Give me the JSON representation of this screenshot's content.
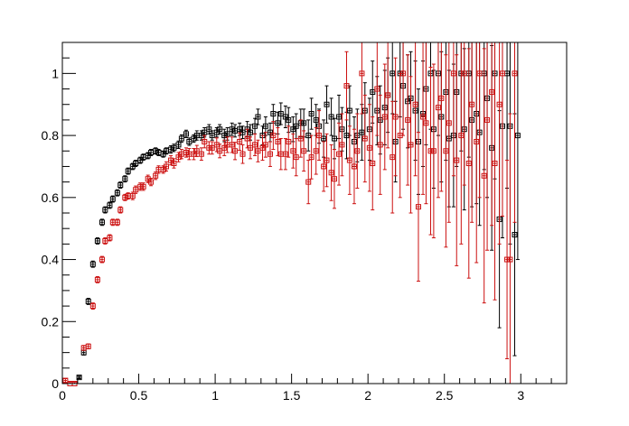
{
  "chart_data": {
    "type": "scatter",
    "title": "",
    "xlabel": "",
    "ylabel": "",
    "xlim": [
      0,
      3.3
    ],
    "ylim": [
      0,
      1.1
    ],
    "grid": false,
    "error_bars": true,
    "x_ticks": [
      {
        "value": 0,
        "label": "0"
      },
      {
        "value": 0.5,
        "label": "0.5"
      },
      {
        "value": 1,
        "label": "1"
      },
      {
        "value": 1.5,
        "label": "1.5"
      },
      {
        "value": 2,
        "label": "2"
      },
      {
        "value": 2.5,
        "label": "2.5"
      },
      {
        "value": 3,
        "label": "3"
      }
    ],
    "y_ticks": [
      {
        "value": 0,
        "label": "0"
      },
      {
        "value": 0.2,
        "label": "0.2"
      },
      {
        "value": 0.4,
        "label": "0.4"
      },
      {
        "value": 0.6,
        "label": "0.6"
      },
      {
        "value": 0.8,
        "label": "0.8"
      },
      {
        "value": 1,
        "label": "1"
      }
    ],
    "series": [
      {
        "color": "#000000",
        "x_halfwidth": 0.01,
        "points": [
          [
            0.11,
            0.02,
            0.004
          ],
          [
            0.14,
            0.1,
            0.008
          ],
          [
            0.17,
            0.265,
            0.01
          ],
          [
            0.2,
            0.385,
            0.01
          ],
          [
            0.23,
            0.46,
            0.01
          ],
          [
            0.26,
            0.52,
            0.01
          ],
          [
            0.28,
            0.56,
            0.01
          ],
          [
            0.31,
            0.575,
            0.01
          ],
          [
            0.33,
            0.595,
            0.01
          ],
          [
            0.36,
            0.615,
            0.01
          ],
          [
            0.38,
            0.64,
            0.01
          ],
          [
            0.41,
            0.66,
            0.01
          ],
          [
            0.43,
            0.685,
            0.01
          ],
          [
            0.46,
            0.7,
            0.01
          ],
          [
            0.48,
            0.71,
            0.01
          ],
          [
            0.51,
            0.72,
            0.01
          ],
          [
            0.53,
            0.73,
            0.01
          ],
          [
            0.56,
            0.735,
            0.01
          ],
          [
            0.58,
            0.745,
            0.01
          ],
          [
            0.61,
            0.75,
            0.01
          ],
          [
            0.63,
            0.745,
            0.01
          ],
          [
            0.66,
            0.74,
            0.01
          ],
          [
            0.68,
            0.75,
            0.01
          ],
          [
            0.71,
            0.755,
            0.012
          ],
          [
            0.73,
            0.76,
            0.012
          ],
          [
            0.76,
            0.77,
            0.012
          ],
          [
            0.78,
            0.79,
            0.012
          ],
          [
            0.81,
            0.805,
            0.012
          ],
          [
            0.83,
            0.78,
            0.012
          ],
          [
            0.86,
            0.79,
            0.012
          ],
          [
            0.88,
            0.8,
            0.015
          ],
          [
            0.91,
            0.8,
            0.015
          ],
          [
            0.93,
            0.81,
            0.015
          ],
          [
            0.96,
            0.82,
            0.015
          ],
          [
            0.98,
            0.8,
            0.015
          ],
          [
            1.01,
            0.81,
            0.015
          ],
          [
            1.03,
            0.82,
            0.015
          ],
          [
            1.06,
            0.8,
            0.02
          ],
          [
            1.08,
            0.805,
            0.02
          ],
          [
            1.11,
            0.82,
            0.02
          ],
          [
            1.13,
            0.815,
            0.02
          ],
          [
            1.16,
            0.82,
            0.02
          ],
          [
            1.18,
            0.81,
            0.02
          ],
          [
            1.21,
            0.82,
            0.025
          ],
          [
            1.23,
            0.81,
            0.025
          ],
          [
            1.26,
            0.83,
            0.025
          ],
          [
            1.28,
            0.86,
            0.025
          ],
          [
            1.31,
            0.8,
            0.03
          ],
          [
            1.33,
            0.83,
            0.03
          ],
          [
            1.36,
            0.81,
            0.03
          ],
          [
            1.38,
            0.87,
            0.03
          ],
          [
            1.41,
            0.84,
            0.035
          ],
          [
            1.43,
            0.87,
            0.035
          ],
          [
            1.46,
            0.86,
            0.035
          ],
          [
            1.48,
            0.85,
            0.04
          ],
          [
            1.51,
            0.82,
            0.04
          ],
          [
            1.53,
            0.83,
            0.04
          ],
          [
            1.56,
            0.84,
            0.045
          ],
          [
            1.58,
            0.84,
            0.045
          ],
          [
            1.61,
            0.8,
            0.05
          ],
          [
            1.63,
            0.87,
            0.05
          ],
          [
            1.66,
            0.85,
            0.05
          ],
          [
            1.68,
            0.83,
            0.055
          ],
          [
            1.71,
            0.79,
            0.06
          ],
          [
            1.73,
            0.9,
            0.06
          ],
          [
            1.76,
            0.86,
            0.06
          ],
          [
            1.78,
            0.79,
            0.065
          ],
          [
            1.81,
            0.86,
            0.07
          ],
          [
            1.83,
            0.82,
            0.07
          ],
          [
            1.86,
            0.8,
            0.075
          ],
          [
            1.88,
            0.88,
            0.08
          ],
          [
            1.91,
            0.78,
            0.08
          ],
          [
            1.93,
            0.8,
            0.085
          ],
          [
            1.96,
            0.81,
            0.09
          ],
          [
            1.98,
            0.88,
            0.09
          ],
          [
            2.01,
            0.82,
            0.1
          ],
          [
            2.03,
            0.94,
            0.1
          ],
          [
            2.06,
            0.88,
            0.11
          ],
          [
            2.08,
            0.85,
            0.11
          ],
          [
            2.11,
            0.89,
            0.12
          ],
          [
            2.13,
            0.93,
            0.12
          ],
          [
            2.16,
            1.0,
            0.13
          ],
          [
            2.18,
            0.78,
            0.13
          ],
          [
            2.21,
            1.0,
            0.14
          ],
          [
            2.23,
            0.96,
            0.14
          ],
          [
            2.26,
            0.91,
            0.15
          ],
          [
            2.28,
            0.92,
            0.15
          ],
          [
            2.31,
            0.88,
            0.16
          ],
          [
            2.33,
            0.78,
            0.17
          ],
          [
            2.36,
            0.87,
            0.17
          ],
          [
            2.38,
            0.95,
            0.18
          ],
          [
            2.41,
            1.0,
            0.18
          ],
          [
            2.43,
            0.82,
            0.19
          ],
          [
            2.46,
            1.0,
            0.2
          ],
          [
            2.48,
            0.86,
            0.21
          ],
          [
            2.51,
            0.94,
            0.22
          ],
          [
            2.53,
            0.79,
            0.22
          ],
          [
            2.56,
            0.8,
            0.23
          ],
          [
            2.58,
            0.94,
            0.24
          ],
          [
            2.61,
            1.0,
            0.25
          ],
          [
            2.63,
            0.82,
            0.26
          ],
          [
            2.66,
            1.0,
            0.27
          ],
          [
            2.68,
            0.85,
            0.28
          ],
          [
            2.71,
            0.87,
            0.29
          ],
          [
            2.73,
            0.81,
            0.3
          ],
          [
            2.76,
            1.0,
            0.31
          ],
          [
            2.78,
            0.92,
            0.32
          ],
          [
            2.81,
            0.76,
            0.33
          ],
          [
            2.83,
            1.0,
            0.34
          ],
          [
            2.86,
            0.53,
            0.35
          ],
          [
            2.88,
            0.83,
            0.36
          ],
          [
            2.91,
            1.0,
            0.37
          ],
          [
            2.93,
            0.83,
            0.38
          ],
          [
            2.96,
            0.48,
            0.39
          ],
          [
            2.98,
            0.8,
            0.4
          ]
        ]
      },
      {
        "color": "#cc1111",
        "x_halfwidth": 0.01,
        "points": [
          [
            0.02,
            0.01,
            0.006
          ],
          [
            0.05,
            0.0,
            0.004
          ],
          [
            0.08,
            0.0,
            0.004
          ],
          [
            0.14,
            0.115,
            0.008
          ],
          [
            0.17,
            0.12,
            0.008
          ],
          [
            0.2,
            0.25,
            0.01
          ],
          [
            0.23,
            0.335,
            0.01
          ],
          [
            0.26,
            0.4,
            0.01
          ],
          [
            0.28,
            0.46,
            0.01
          ],
          [
            0.31,
            0.47,
            0.01
          ],
          [
            0.33,
            0.52,
            0.01
          ],
          [
            0.36,
            0.52,
            0.01
          ],
          [
            0.38,
            0.56,
            0.01
          ],
          [
            0.41,
            0.6,
            0.01
          ],
          [
            0.43,
            0.605,
            0.01
          ],
          [
            0.46,
            0.605,
            0.012
          ],
          [
            0.48,
            0.625,
            0.012
          ],
          [
            0.51,
            0.635,
            0.012
          ],
          [
            0.53,
            0.635,
            0.012
          ],
          [
            0.56,
            0.66,
            0.012
          ],
          [
            0.58,
            0.65,
            0.012
          ],
          [
            0.61,
            0.67,
            0.012
          ],
          [
            0.63,
            0.69,
            0.012
          ],
          [
            0.66,
            0.69,
            0.012
          ],
          [
            0.68,
            0.7,
            0.015
          ],
          [
            0.71,
            0.72,
            0.015
          ],
          [
            0.73,
            0.71,
            0.015
          ],
          [
            0.76,
            0.73,
            0.015
          ],
          [
            0.78,
            0.74,
            0.015
          ],
          [
            0.81,
            0.745,
            0.015
          ],
          [
            0.83,
            0.74,
            0.018
          ],
          [
            0.86,
            0.74,
            0.018
          ],
          [
            0.88,
            0.75,
            0.018
          ],
          [
            0.91,
            0.74,
            0.02
          ],
          [
            0.93,
            0.78,
            0.02
          ],
          [
            0.96,
            0.76,
            0.02
          ],
          [
            0.98,
            0.76,
            0.02
          ],
          [
            1.01,
            0.77,
            0.022
          ],
          [
            1.03,
            0.75,
            0.022
          ],
          [
            1.06,
            0.76,
            0.025
          ],
          [
            1.08,
            0.77,
            0.025
          ],
          [
            1.11,
            0.77,
            0.025
          ],
          [
            1.13,
            0.75,
            0.028
          ],
          [
            1.16,
            0.78,
            0.028
          ],
          [
            1.18,
            0.74,
            0.03
          ],
          [
            1.21,
            0.79,
            0.03
          ],
          [
            1.23,
            0.76,
            0.035
          ],
          [
            1.26,
            0.77,
            0.035
          ],
          [
            1.28,
            0.75,
            0.035
          ],
          [
            1.31,
            0.76,
            0.04
          ],
          [
            1.33,
            0.77,
            0.04
          ],
          [
            1.36,
            0.74,
            0.04
          ],
          [
            1.38,
            0.8,
            0.045
          ],
          [
            1.41,
            0.78,
            0.045
          ],
          [
            1.43,
            0.74,
            0.05
          ],
          [
            1.46,
            0.74,
            0.05
          ],
          [
            1.48,
            0.78,
            0.05
          ],
          [
            1.51,
            0.75,
            0.055
          ],
          [
            1.53,
            0.73,
            0.06
          ],
          [
            1.56,
            0.79,
            0.06
          ],
          [
            1.58,
            0.75,
            0.065
          ],
          [
            1.61,
            0.65,
            0.07
          ],
          [
            1.63,
            0.73,
            0.07
          ],
          [
            1.66,
            0.75,
            0.075
          ],
          [
            1.68,
            0.8,
            0.08
          ],
          [
            1.71,
            0.7,
            0.08
          ],
          [
            1.73,
            0.72,
            0.085
          ],
          [
            1.76,
            0.68,
            0.09
          ],
          [
            1.78,
            0.66,
            0.095
          ],
          [
            1.81,
            0.74,
            0.1
          ],
          [
            1.83,
            0.77,
            0.1
          ],
          [
            1.86,
            0.96,
            0.11
          ],
          [
            1.88,
            0.72,
            0.11
          ],
          [
            1.91,
            0.7,
            0.12
          ],
          [
            1.93,
            0.75,
            0.12
          ],
          [
            1.96,
            1.0,
            0.13
          ],
          [
            1.98,
            0.79,
            0.14
          ],
          [
            2.01,
            0.76,
            0.14
          ],
          [
            2.03,
            0.71,
            0.15
          ],
          [
            2.06,
            0.95,
            0.15
          ],
          [
            2.08,
            0.77,
            0.16
          ],
          [
            2.11,
            0.86,
            0.17
          ],
          [
            2.13,
            0.93,
            0.17
          ],
          [
            2.16,
            0.73,
            0.18
          ],
          [
            2.18,
            0.86,
            0.19
          ],
          [
            2.21,
            0.8,
            0.2
          ],
          [
            2.23,
            1.0,
            0.2
          ],
          [
            2.26,
            0.85,
            0.21
          ],
          [
            2.28,
            0.77,
            0.22
          ],
          [
            2.31,
            0.9,
            0.23
          ],
          [
            2.33,
            0.57,
            0.24
          ],
          [
            2.36,
            0.86,
            0.25
          ],
          [
            2.38,
            0.84,
            0.26
          ],
          [
            2.41,
            0.75,
            0.27
          ],
          [
            2.43,
            0.75,
            0.28
          ],
          [
            2.46,
            0.89,
            0.29
          ],
          [
            2.48,
            0.92,
            0.3
          ],
          [
            2.51,
            0.75,
            0.31
          ],
          [
            2.53,
            0.84,
            0.32
          ],
          [
            2.56,
            1.0,
            0.33
          ],
          [
            2.58,
            0.72,
            0.34
          ],
          [
            2.61,
            0.8,
            0.35
          ],
          [
            2.63,
            1.0,
            0.36
          ],
          [
            2.66,
            0.71,
            0.37
          ],
          [
            2.68,
            0.9,
            0.38
          ],
          [
            2.71,
            0.78,
            0.39
          ],
          [
            2.73,
            1.0,
            0.4
          ],
          [
            2.76,
            0.67,
            0.41
          ],
          [
            2.78,
            0.85,
            0.42
          ],
          [
            2.81,
            0.94,
            0.43
          ],
          [
            2.83,
            0.71,
            0.44
          ],
          [
            2.86,
            0.9,
            0.45
          ],
          [
            2.88,
            1.0,
            0.46
          ],
          [
            2.91,
            0.4,
            0.32
          ],
          [
            2.93,
            0.4,
            0.47
          ],
          [
            2.96,
            1.0,
            0.48
          ]
        ]
      }
    ]
  }
}
